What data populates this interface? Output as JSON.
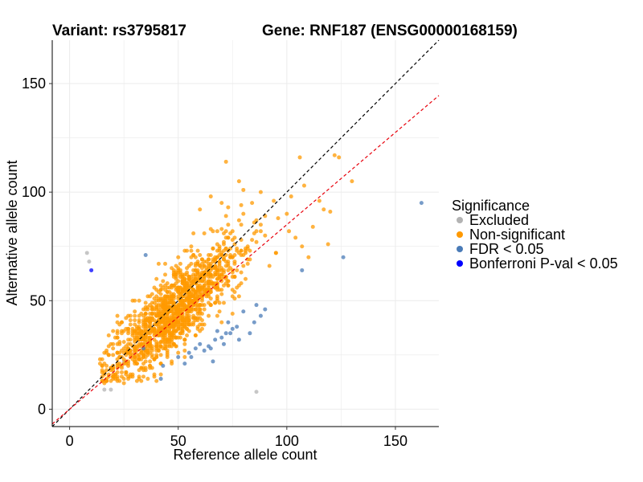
{
  "chart_data": {
    "type": "scatter",
    "title_left": "Variant: rs3795817",
    "title_right": "Gene: RNF187 (ENSG00000168159)",
    "xlabel": "Reference allele count",
    "ylabel": "Alternative allele count",
    "xlim": [
      -8,
      170
    ],
    "ylim": [
      -8,
      170
    ],
    "xticks": [
      0,
      50,
      100,
      150
    ],
    "yticks": [
      0,
      50,
      100,
      150
    ],
    "grid": true,
    "legend": {
      "title": "Significance",
      "placement": "right"
    },
    "reference_lines": [
      {
        "slope": 1.0,
        "intercept": 0,
        "color": "#000000",
        "style": "dashed"
      },
      {
        "slope": 0.85,
        "intercept": 0,
        "color": "#e8000b",
        "style": "dashed"
      }
    ],
    "series": [
      {
        "name": "Excluded",
        "color": "#b3b3b3",
        "points": [
          [
            8,
            72
          ],
          [
            9,
            68
          ],
          [
            86,
            8
          ],
          [
            16,
            9
          ],
          [
            19,
            9
          ],
          [
            25,
            22
          ]
        ]
      },
      {
        "name": "Non-significant",
        "color": "#ff9900",
        "generated_cloud": {
          "count": 1400,
          "x_mean": 48,
          "x_sd": 15,
          "y_ratio": 0.86,
          "y_sd": 9,
          "seed": 7
        },
        "points": [
          [
            72,
            114
          ],
          [
            106,
            116
          ],
          [
            122,
            117
          ],
          [
            124,
            116
          ],
          [
            130,
            105
          ],
          [
            108,
            103
          ],
          [
            102,
            98
          ],
          [
            115,
            96
          ],
          [
            120,
            91
          ],
          [
            100,
            90
          ],
          [
            96,
            88
          ],
          [
            107,
            75
          ],
          [
            119,
            76
          ],
          [
            90,
            80
          ],
          [
            85,
            86
          ],
          [
            80,
            90
          ],
          [
            84,
            95
          ],
          [
            88,
            100
          ],
          [
            78,
            105
          ],
          [
            110,
            70
          ],
          [
            95,
            72
          ],
          [
            92,
            66
          ],
          [
            65,
            98
          ],
          [
            70,
            95
          ],
          [
            60,
            92
          ],
          [
            73,
            85
          ],
          [
            68,
            82
          ],
          [
            101,
            82
          ],
          [
            117,
            92
          ],
          [
            112,
            84
          ]
        ]
      },
      {
        "name": "FDR < 0.05",
        "color": "#4a7bb7",
        "points": [
          [
            162,
            95
          ],
          [
            126,
            70
          ],
          [
            107,
            64
          ],
          [
            35,
            71
          ],
          [
            34,
            28
          ],
          [
            43,
            20
          ],
          [
            42,
            14
          ],
          [
            58,
            28
          ],
          [
            65,
            28
          ],
          [
            66,
            22
          ],
          [
            67,
            32
          ],
          [
            68,
            36
          ],
          [
            72,
            35
          ],
          [
            73,
            40
          ],
          [
            75,
            37
          ],
          [
            77,
            38
          ],
          [
            78,
            32
          ],
          [
            80,
            45
          ],
          [
            83,
            35
          ],
          [
            85,
            40
          ],
          [
            86,
            48
          ],
          [
            88,
            43
          ],
          [
            90,
            46
          ],
          [
            50,
            24
          ],
          [
            55,
            26
          ],
          [
            60,
            30
          ],
          [
            62,
            27
          ],
          [
            64,
            29
          ],
          [
            70,
            33
          ],
          [
            71,
            30
          ],
          [
            53,
            21
          ],
          [
            56,
            24
          ],
          [
            74,
            35
          ]
        ]
      },
      {
        "name": "Bonferroni P-val < 0.05",
        "color": "#0000ff",
        "points": [
          [
            10,
            64
          ]
        ]
      }
    ]
  }
}
